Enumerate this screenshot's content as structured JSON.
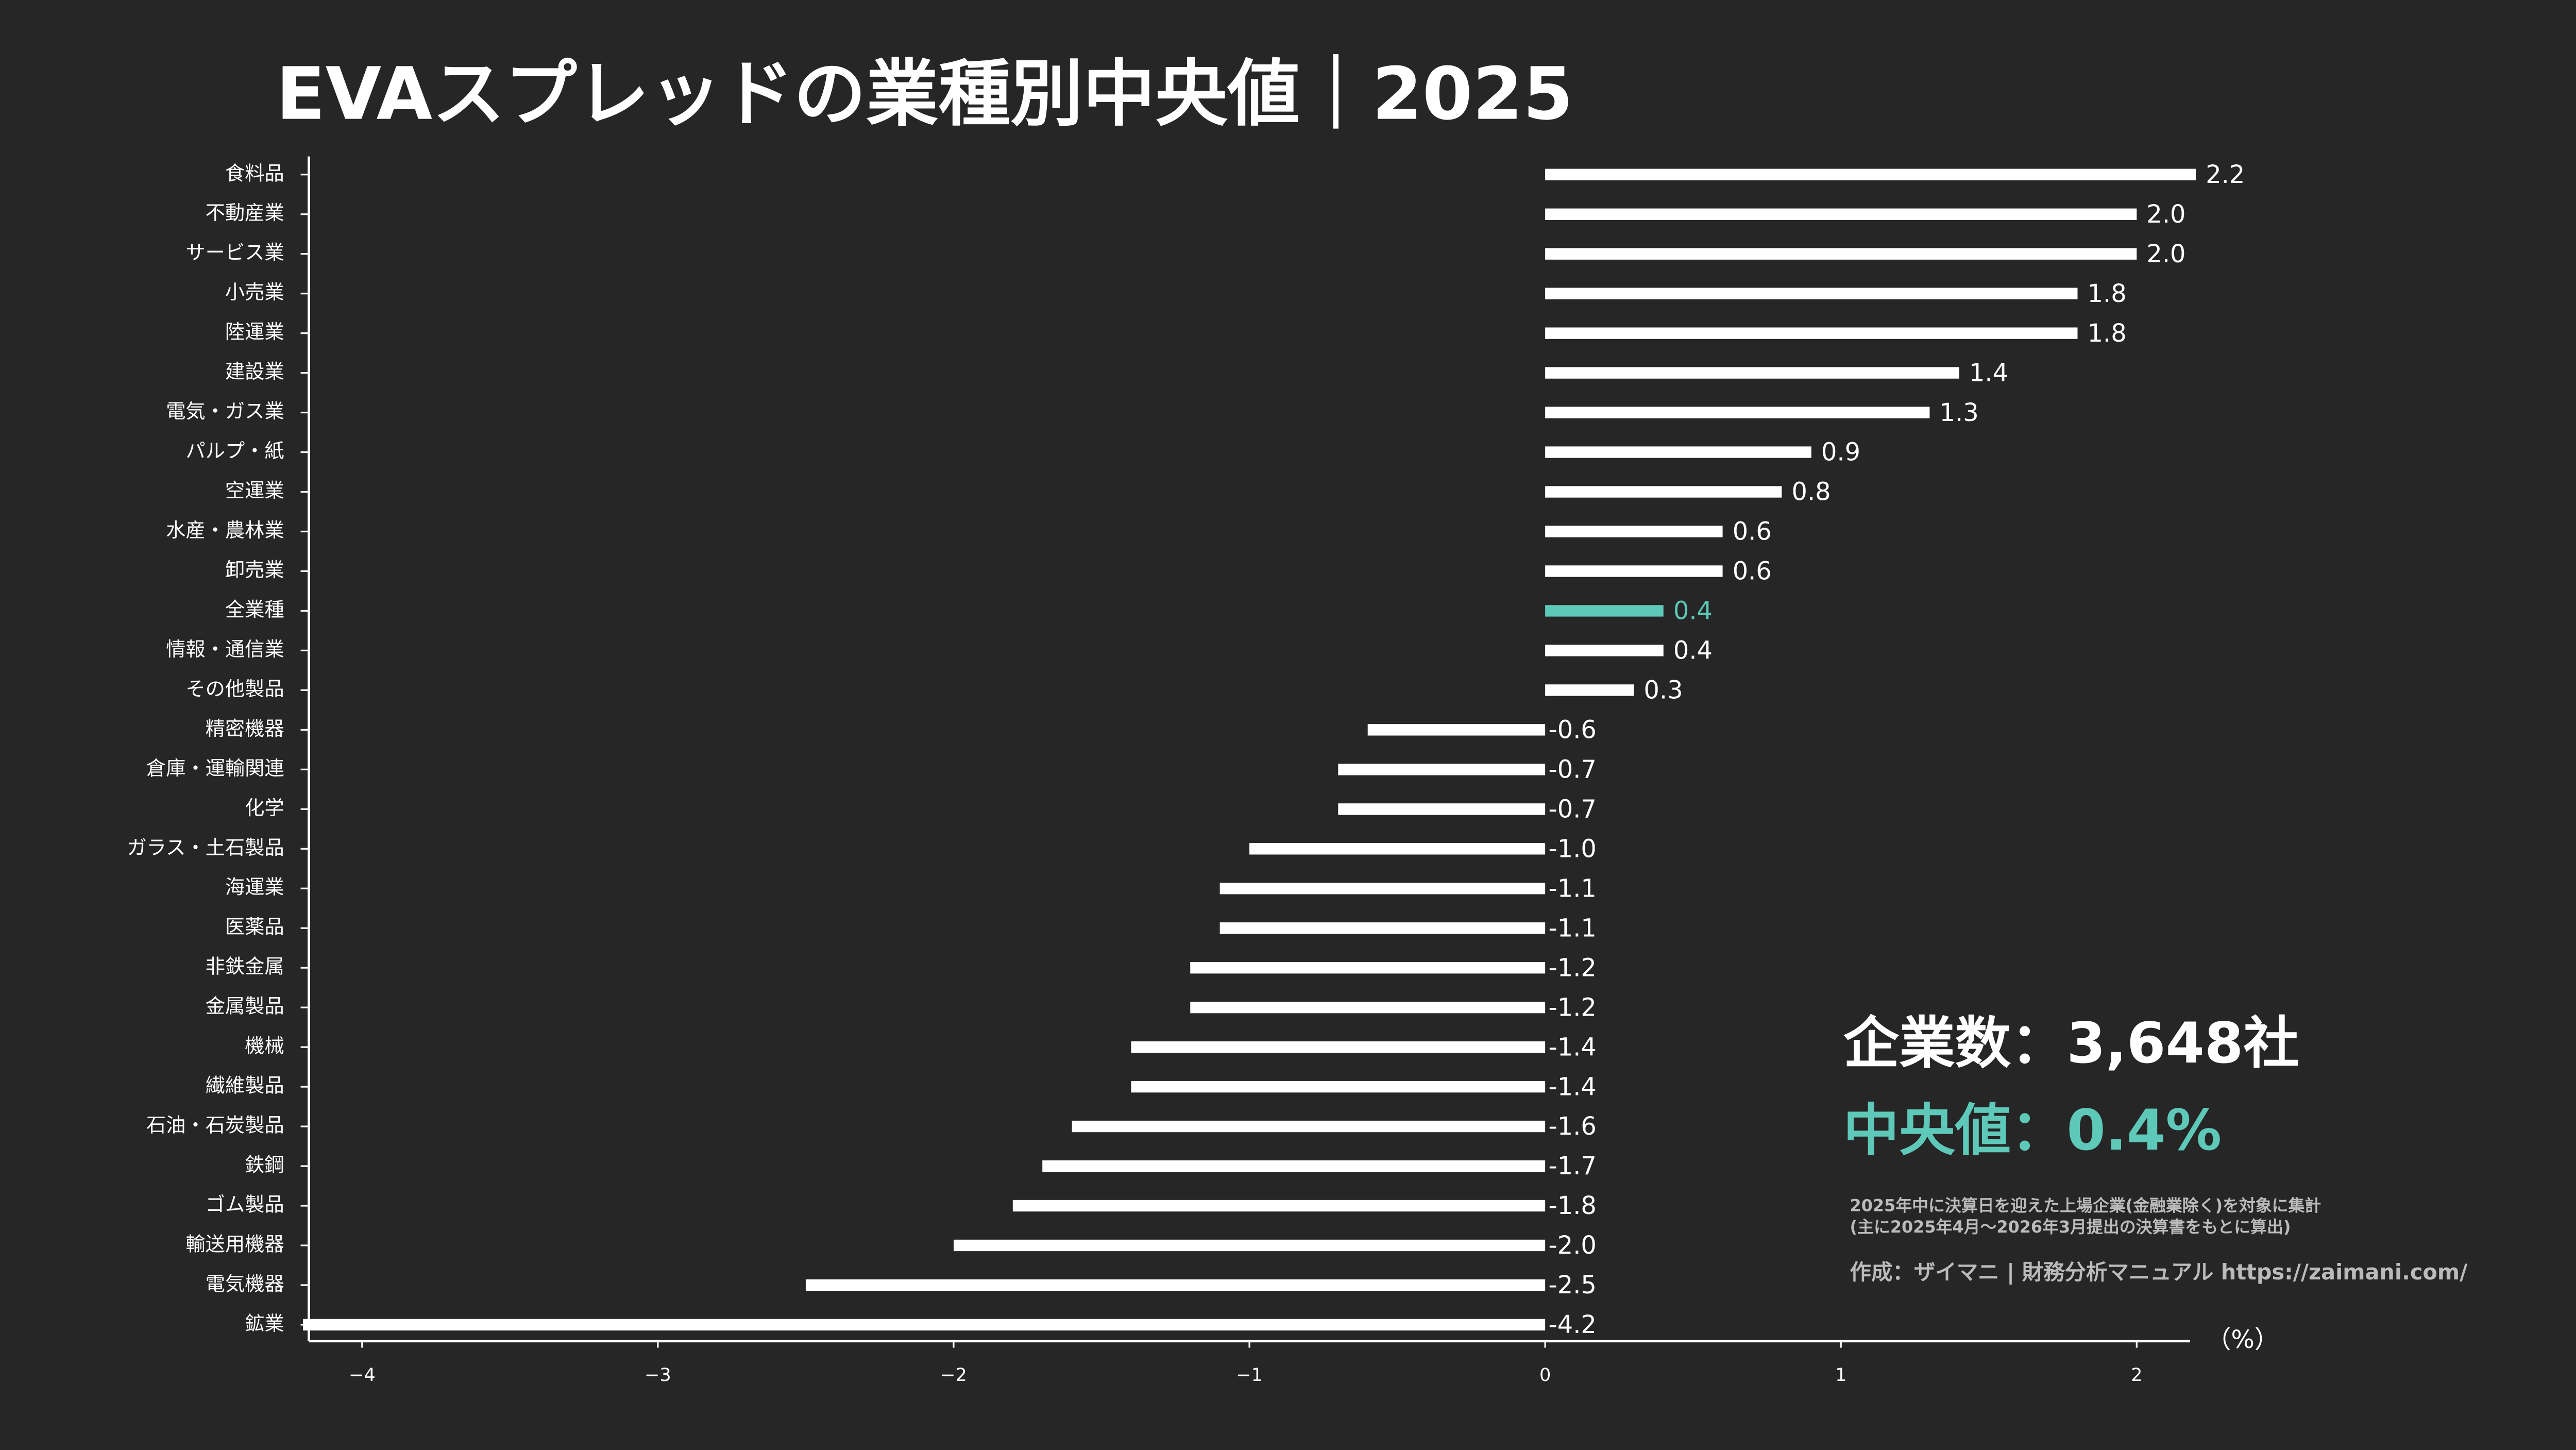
{
  "chart_data": {
    "type": "barh",
    "title": "EVAスプレッドの業種別中央値｜2025",
    "categories": [
      "食料品",
      "不動産業",
      "サービス業",
      "小売業",
      "陸運業",
      "建設業",
      "電気・ガス業",
      "パルプ・紙",
      "空運業",
      "水産・農林業",
      "卸売業",
      "全業種",
      "情報・通信業",
      "その他製品",
      "精密機器",
      "倉庫・運輸関連",
      "化学",
      "ガラス・土石製品",
      "海運業",
      "医薬品",
      "非鉄金属",
      "金属製品",
      "機械",
      "繊維製品",
      "石油・石炭製品",
      "鉄鋼",
      "ゴム製品",
      "輸送用機器",
      "電気機器",
      "鉱業"
    ],
    "values": [
      2.2,
      2.0,
      2.0,
      1.8,
      1.8,
      1.4,
      1.3,
      0.9,
      0.8,
      0.6,
      0.6,
      0.4,
      0.4,
      0.3,
      -0.6,
      -0.7,
      -0.7,
      -1.0,
      -1.1,
      -1.1,
      -1.2,
      -1.2,
      -1.4,
      -1.4,
      -1.6,
      -1.7,
      -1.8,
      -2.0,
      -2.5,
      -4.2
    ],
    "value_labels": [
      "2.2",
      "2.0",
      "2.0",
      "1.8",
      "1.8",
      "1.4",
      "1.3",
      "0.9",
      "0.8",
      "0.6",
      "0.6",
      "0.4",
      "0.4",
      "0.3",
      "-0.6",
      "-0.7",
      "-0.7",
      "-1.0",
      "-1.1",
      "-1.1",
      "-1.2",
      "-1.2",
      "-1.4",
      "-1.4",
      "-1.6",
      "-1.7",
      "-1.8",
      "-2.0",
      "-2.5",
      "-4.2"
    ],
    "colors": [
      "#ffffff",
      "#ffffff",
      "#ffffff",
      "#ffffff",
      "#ffffff",
      "#ffffff",
      "#ffffff",
      "#ffffff",
      "#ffffff",
      "#ffffff",
      "#ffffff",
      "#5ec9b9",
      "#ffffff",
      "#ffffff",
      "#ffffff",
      "#ffffff",
      "#ffffff",
      "#ffffff",
      "#ffffff",
      "#ffffff",
      "#ffffff",
      "#ffffff",
      "#ffffff",
      "#ffffff",
      "#ffffff",
      "#ffffff",
      "#ffffff",
      "#ffffff",
      "#ffffff",
      "#ffffff"
    ],
    "xlim": [
      -4.18,
      2.18
    ],
    "xticks": [
      {
        "value": -4,
        "label": "−4"
      },
      {
        "value": -3,
        "label": "−3"
      },
      {
        "value": -2,
        "label": "−2"
      },
      {
        "value": -1,
        "label": "−1"
      },
      0,
      1,
      2
    ],
    "x_label": "（%）",
    "annotations": [
      "企業数：3,648社",
      "中央値：0.4%",
      "2025年中に決算日を迎えた上場企業(金融業除く)を対象に集計",
      "(主に2025年4月～2026年3月提出の決算書をもとに算出)",
      "作成：ザイマニ | 財務分析マニュアル https://zaimani.com/"
    ]
  }
}
